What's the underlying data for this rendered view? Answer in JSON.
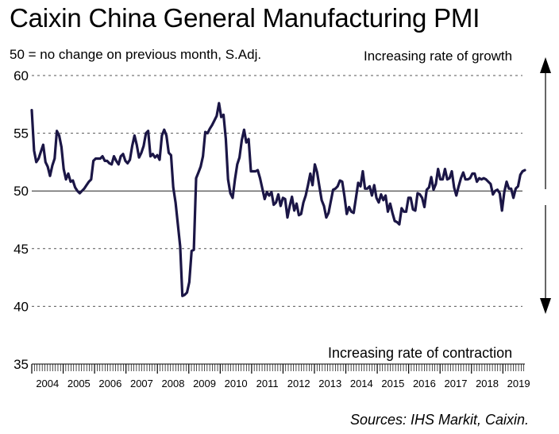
{
  "chart_data": {
    "type": "line",
    "title": "Caixin China General Manufacturing PMI",
    "subtitle": "50 = no change on previous month, S.Adj.",
    "annotations": {
      "growth": "Increasing rate of growth",
      "contraction": "Increasing rate of contraction"
    },
    "source": "Sources: IHS Markit, Caixin.",
    "ylim": [
      35,
      60
    ],
    "yticks": [
      "60",
      "55",
      "50",
      "45",
      "40",
      "35"
    ],
    "x_tick_labels": [
      "2004",
      "2005",
      "2006",
      "2007",
      "2008",
      "2009",
      "2010",
      "2011",
      "2012",
      "2013",
      "2014",
      "2015",
      "2016",
      "2017",
      "2018",
      "2019"
    ],
    "x_start": 2004.0,
    "x_end": 2019.7,
    "grid": "horizontal dashed",
    "series": [
      {
        "name": "Caixin China General Manufacturing PMI",
        "color": "#1b1646",
        "values": [
          57.0,
          53.5,
          52.5,
          52.8,
          53.4,
          54.0,
          52.5,
          52.1,
          51.3,
          52.2,
          52.8,
          55.2,
          54.8,
          53.8,
          51.9,
          51.0,
          51.5,
          50.8,
          50.9,
          50.3,
          50.0,
          49.8,
          50.0,
          50.2,
          50.5,
          50.8,
          51.0,
          52.6,
          52.8,
          52.8,
          52.8,
          53.0,
          52.6,
          52.6,
          52.4,
          52.3,
          53.0,
          52.6,
          52.3,
          53.0,
          53.2,
          52.6,
          52.4,
          52.7,
          53.9,
          54.8,
          54.0,
          52.9,
          53.3,
          53.9,
          55.0,
          55.2,
          53.0,
          53.2,
          52.9,
          53.1,
          52.7,
          54.8,
          55.3,
          54.8,
          53.3,
          53.1,
          50.3,
          49.0,
          47.1,
          45.2,
          40.9,
          41.0,
          41.2,
          42.1,
          44.8,
          44.9,
          51.1,
          51.6,
          52.1,
          53.0,
          55.1,
          55.0,
          55.4,
          55.7,
          56.1,
          56.5,
          57.6,
          56.4,
          56.6,
          54.5,
          51.0,
          49.8,
          49.4,
          51.0,
          52.3,
          52.9,
          54.4,
          55.3,
          54.2,
          54.5,
          51.7,
          51.7,
          51.7,
          51.8,
          51.1,
          50.2,
          49.3,
          49.9,
          49.6,
          49.9,
          48.8,
          49.0,
          49.7,
          48.7,
          49.4,
          49.3,
          47.7,
          48.7,
          49.5,
          48.3,
          48.9,
          47.9,
          48.0,
          49.0,
          49.6,
          50.5,
          51.5,
          50.5,
          52.3,
          51.6,
          50.4,
          49.2,
          48.7,
          47.7,
          48.1,
          49.1,
          50.1,
          50.2,
          50.4,
          50.9,
          50.8,
          49.5,
          48.0,
          48.6,
          48.2,
          48.1,
          49.4,
          50.7,
          50.4,
          51.7,
          50.2,
          50.2,
          50.4,
          49.6,
          50.5,
          49.4,
          49.0,
          49.7,
          49.2,
          49.6,
          48.2,
          48.9,
          48.1,
          47.4,
          47.3,
          47.1,
          48.5,
          48.2,
          48.2,
          49.4,
          49.4,
          48.4,
          48.3,
          49.8,
          49.7,
          49.4,
          48.6,
          50.1,
          50.3,
          51.2,
          50.1,
          50.6,
          51.9,
          51.0,
          51.0,
          51.9,
          51.0,
          51.1,
          51.7,
          50.3,
          49.6,
          50.4,
          51.1,
          51.6,
          51.0,
          51.0,
          51.1,
          51.5,
          51.5,
          50.8,
          51.1,
          51.0,
          51.1,
          51.0,
          50.8,
          50.6,
          49.7,
          50.0,
          50.1,
          49.8,
          48.3,
          49.9,
          50.8,
          50.2,
          50.2,
          49.4,
          50.2,
          50.4,
          51.4,
          51.7,
          51.8
        ]
      }
    ]
  }
}
